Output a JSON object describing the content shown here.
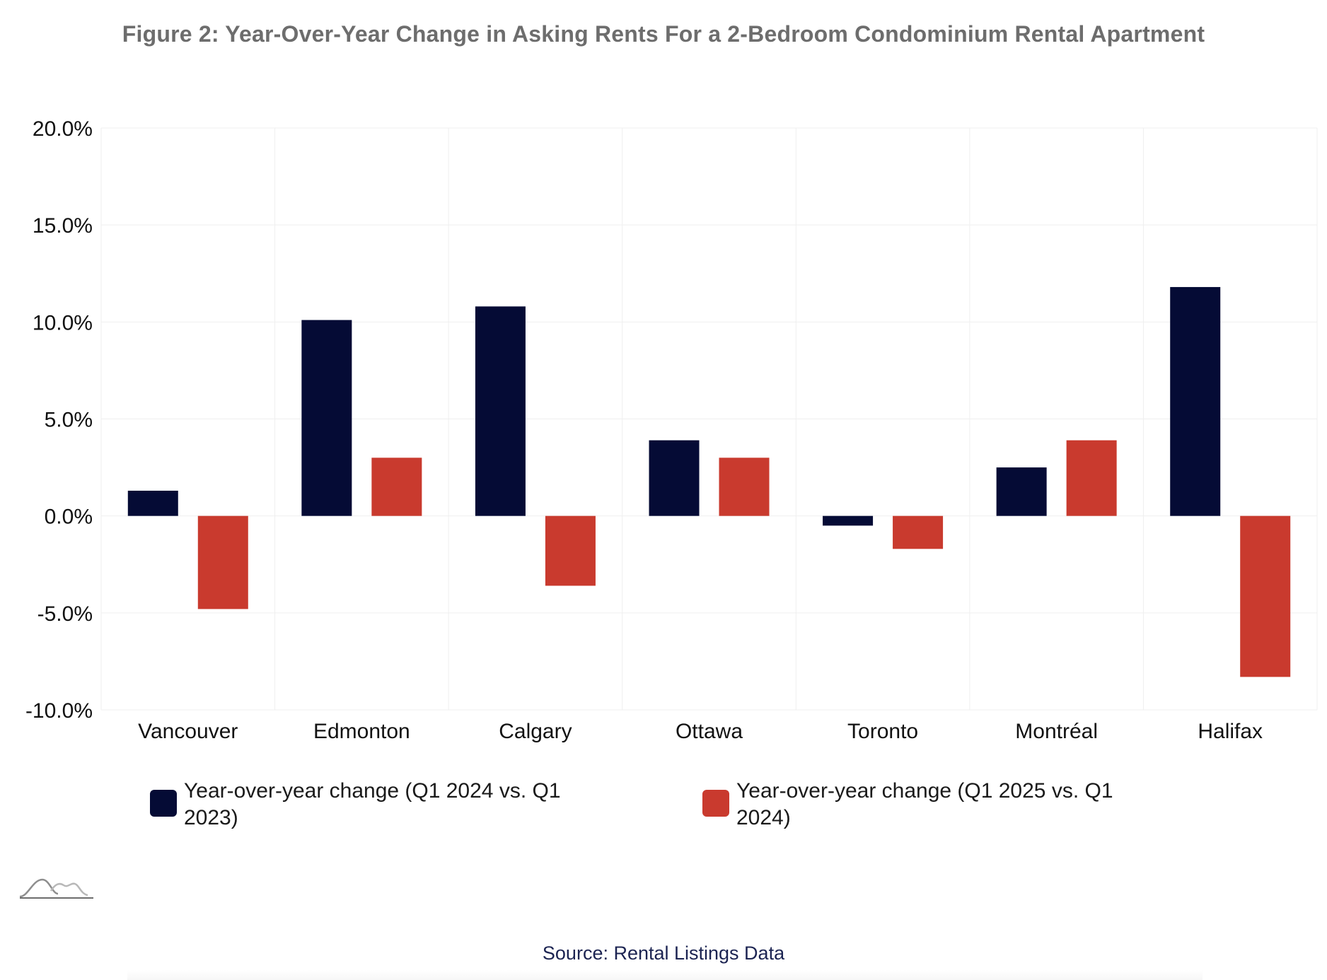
{
  "title": "Figure 2: Year-Over-Year Change in Asking Rents For a 2-Bedroom Condominium Rental Apartment",
  "source": "Source: Rental Listings Data",
  "colors": {
    "series1": "#050b35",
    "series2": "#c93a2e",
    "title": "#6d6d6d",
    "source": "#1c2452",
    "grid": "#efefef"
  },
  "icons": {
    "logo": "mountain-logo-icon"
  },
  "chart_data": {
    "type": "bar",
    "title": "Figure 2: Year-Over-Year Change in Asking Rents For a 2-Bedroom Condominium Rental Apartment",
    "xlabel": "",
    "ylabel": "",
    "categories": [
      "Vancouver",
      "Edmonton",
      "Calgary",
      "Ottawa",
      "Toronto",
      "Montréal",
      "Halifax"
    ],
    "series": [
      {
        "name": "Year-over-year change (Q1 2024 vs. Q1 2023)",
        "color": "#050b35",
        "values": [
          1.3,
          10.1,
          10.8,
          3.9,
          -0.5,
          2.5,
          11.8
        ]
      },
      {
        "name": "Year-over-year change (Q1 2025 vs. Q1 2024)",
        "color": "#c93a2e",
        "values": [
          -4.8,
          3.0,
          -3.6,
          3.0,
          -1.7,
          3.9,
          -8.3
        ]
      }
    ],
    "ylim": [
      -10,
      20
    ],
    "yticks": [
      20,
      15,
      10,
      5,
      0,
      -5,
      -10
    ],
    "ytick_labels": [
      "20.0%",
      "15.0%",
      "10.0%",
      "5.0%",
      "0.0%",
      "-5.0%",
      "-10.0%"
    ],
    "grid": true,
    "legend_position": "bottom"
  }
}
